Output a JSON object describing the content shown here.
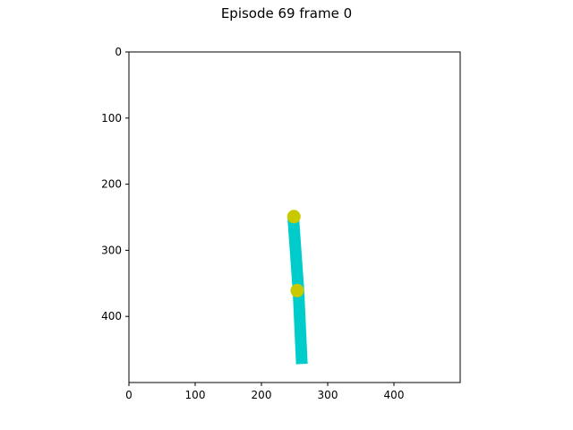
{
  "title": "Episode 69 frame 0",
  "axes": {
    "x_ticks": [
      0,
      100,
      200,
      300,
      400
    ],
    "y_ticks": [
      0,
      100,
      200,
      300,
      400
    ],
    "x_range": [
      0,
      500
    ],
    "y_range": [
      0,
      500
    ],
    "y_inverted": true
  },
  "scene": {
    "segments": [
      {
        "name": "upper-link",
        "from": [
          248,
          250
        ],
        "to": [
          256,
          363
        ]
      },
      {
        "name": "lower-link",
        "from": [
          256,
          363
        ],
        "to": [
          261,
          472
        ]
      }
    ],
    "joints": [
      {
        "name": "top-joint",
        "x": 249,
        "y": 249
      },
      {
        "name": "middle-joint",
        "x": 254,
        "y": 361
      }
    ],
    "colors": {
      "link": "#00cccc",
      "joint": "#c9c900"
    }
  }
}
